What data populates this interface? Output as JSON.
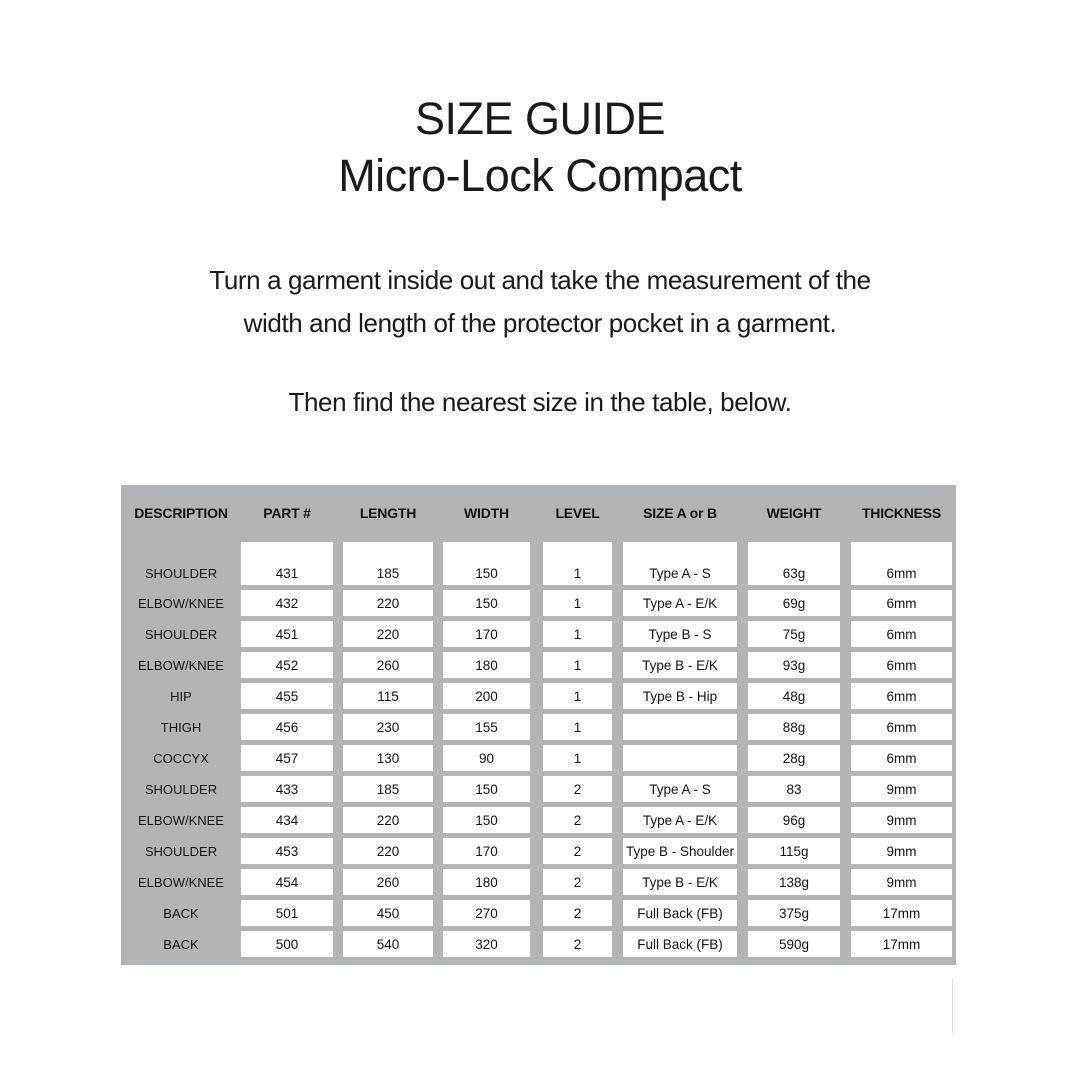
{
  "header": {
    "title_line1": "SIZE GUIDE",
    "title_line2": "Micro-Lock Compact"
  },
  "instructions": {
    "line1": "Turn a garment inside out and take the measurement of the",
    "line2": "width and length of the protector pocket in a garment.",
    "find_text": "Then find the nearest size in the table, below."
  },
  "table": {
    "columns": [
      "DESCRIPTION",
      "PART #",
      "LENGTH",
      "WIDTH",
      "LEVEL",
      "SIZE A or B",
      "WEIGHT",
      "THICKNESS"
    ],
    "rows": [
      [
        "SHOULDER",
        "431",
        "185",
        "150",
        "1",
        "Type A - S",
        "63g",
        "6mm"
      ],
      [
        "ELBOW/KNEE",
        "432",
        "220",
        "150",
        "1",
        "Type A - E/K",
        "69g",
        "6mm"
      ],
      [
        "SHOULDER",
        "451",
        "220",
        "170",
        "1",
        "Type B - S",
        "75g",
        "6mm"
      ],
      [
        "ELBOW/KNEE",
        "452",
        "260",
        "180",
        "1",
        "Type B - E/K",
        "93g",
        "6mm"
      ],
      [
        "HIP",
        "455",
        "115",
        "200",
        "1",
        "Type B - Hip",
        "48g",
        "6mm"
      ],
      [
        "THIGH",
        "456",
        "230",
        "155",
        "1",
        "",
        "88g",
        "6mm"
      ],
      [
        "COCCYX",
        "457",
        "130",
        "90",
        "1",
        "",
        "28g",
        "6mm"
      ],
      [
        "SHOULDER",
        "433",
        "185",
        "150",
        "2",
        "Type A - S",
        "83",
        "9mm"
      ],
      [
        "ELBOW/KNEE",
        "434",
        "220",
        "150",
        "2",
        "Type A - E/K",
        "96g",
        "9mm"
      ],
      [
        "SHOULDER",
        "453",
        "220",
        "170",
        "2",
        "Type B - Shoulder",
        "115g",
        "9mm"
      ],
      [
        "ELBOW/KNEE",
        "454",
        "260",
        "180",
        "2",
        "Type B - E/K",
        "138g",
        "9mm"
      ],
      [
        "BACK",
        "501",
        "450",
        "270",
        "2",
        "Full Back (FB)",
        "375g",
        "17mm"
      ],
      [
        "BACK",
        "500",
        "540",
        "320",
        "2",
        "Full Back (FB)",
        "590g",
        "17mm"
      ]
    ]
  },
  "colors": {
    "table_bg": "#b2b4b6",
    "cell_bg": "#ffffff",
    "text": "#161616"
  }
}
